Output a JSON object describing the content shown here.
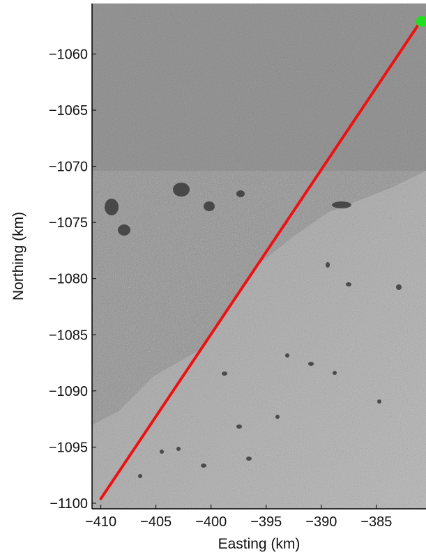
{
  "chart_data": {
    "type": "line",
    "title": "",
    "xlabel": "Easting (km)",
    "ylabel": "Northing (km)",
    "xlim": [
      -410.8,
      -380.5
    ],
    "ylim": [
      -1100.5,
      -1055.5
    ],
    "grid": false,
    "background": "grayscale satellite image of ice surface",
    "x_ticks": [
      -410,
      -405,
      -400,
      -395,
      -390,
      -385
    ],
    "x_tick_labels": [
      "−410",
      "−405",
      "−400",
      "−395",
      "−390",
      "−385"
    ],
    "y_ticks": [
      -1060,
      -1065,
      -1070,
      -1075,
      -1080,
      -1085,
      -1090,
      -1095,
      -1100
    ],
    "y_tick_labels": [
      "−1060",
      "−1065",
      "−1070",
      "−1075",
      "−1080",
      "−1085",
      "−1090",
      "−1095",
      "−1100"
    ],
    "series": [
      {
        "type": "line",
        "color": "#ee1111",
        "points": [
          [
            -410.0,
            -1099.6
          ],
          [
            -381.2,
            -1057.4
          ]
        ]
      },
      {
        "type": "scatter",
        "color": "#22dd22",
        "points": [
          [
            -380.9,
            -1057.1
          ]
        ]
      }
    ]
  }
}
